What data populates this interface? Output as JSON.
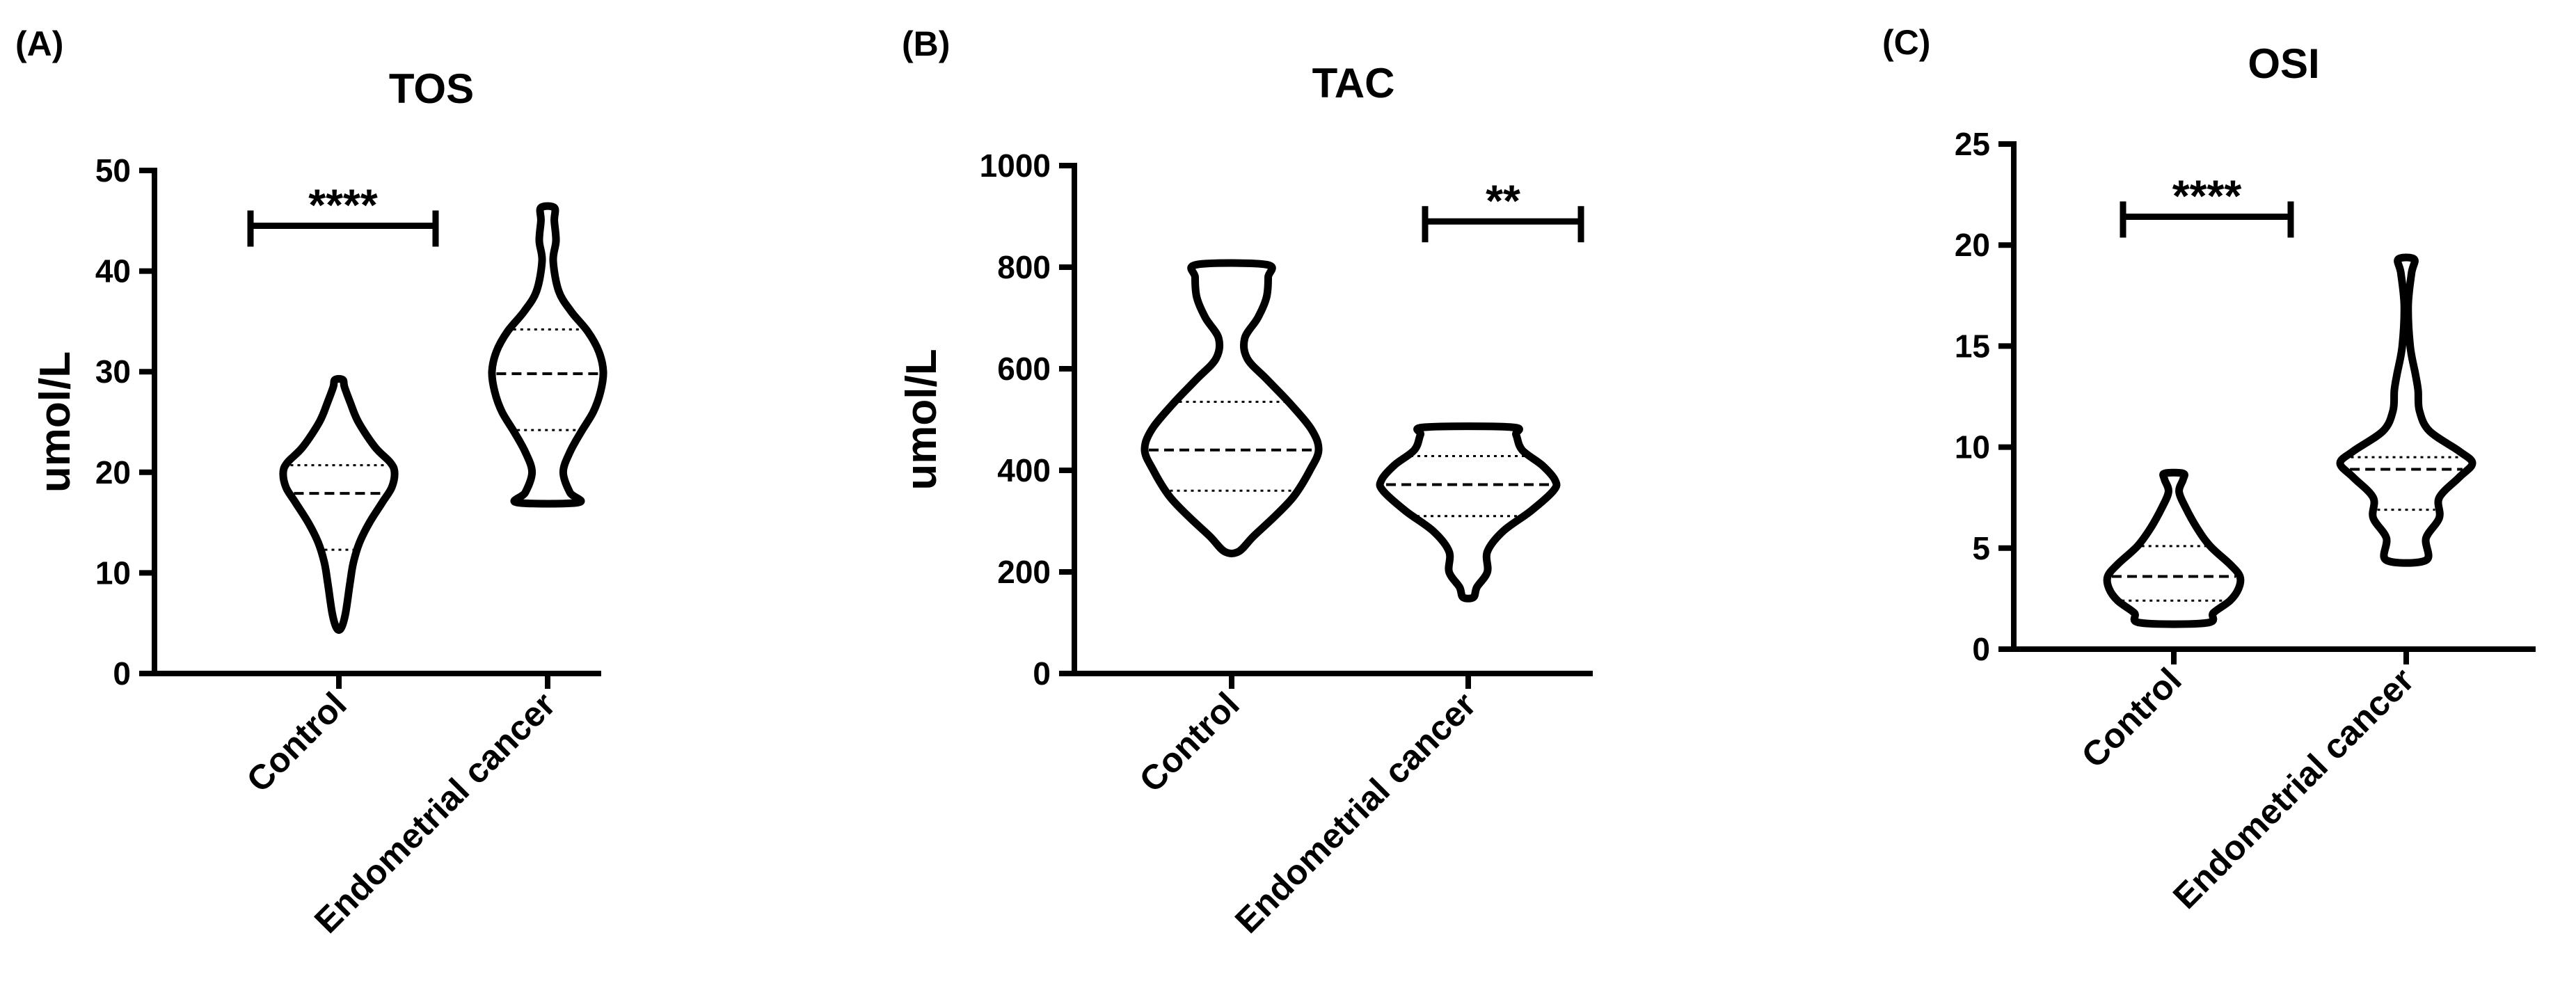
{
  "chart_data": [
    {
      "type": "violin",
      "panel_label": "(A)",
      "title": "TOS",
      "ylabel": "umol/L",
      "ylim": [
        0,
        50
      ],
      "yticks": [
        0,
        10,
        20,
        30,
        40,
        50
      ],
      "categories": [
        "Control",
        "Endometrial cancer"
      ],
      "groups": [
        {
          "name": "Control",
          "min": 4.5,
          "q1": 12.3,
          "median": 17.9,
          "q3": 20.7,
          "max": 29.2,
          "profile": [
            [
              4.5,
              0.04
            ],
            [
              6,
              0.12
            ],
            [
              9,
              0.2
            ],
            [
              11,
              0.26
            ],
            [
              13,
              0.37
            ],
            [
              15,
              0.55
            ],
            [
              17,
              0.78
            ],
            [
              18.5,
              0.95
            ],
            [
              20,
              1.0
            ],
            [
              21,
              0.92
            ],
            [
              22.5,
              0.65
            ],
            [
              25,
              0.35
            ],
            [
              27,
              0.2
            ],
            [
              28.5,
              0.1
            ],
            [
              29.2,
              0.07
            ]
          ]
        },
        {
          "name": "Endometrial cancer",
          "min": 17,
          "q1": 24.2,
          "median": 29.8,
          "q3": 34.2,
          "max": 46.3,
          "profile": [
            [
              17,
              0.55
            ],
            [
              18,
              0.4
            ],
            [
              20,
              0.28
            ],
            [
              22,
              0.4
            ],
            [
              24,
              0.6
            ],
            [
              26,
              0.82
            ],
            [
              28,
              0.95
            ],
            [
              30,
              1.0
            ],
            [
              32,
              0.92
            ],
            [
              34,
              0.72
            ],
            [
              36,
              0.42
            ],
            [
              38,
              0.2
            ],
            [
              41,
              0.1
            ],
            [
              43,
              0.15
            ],
            [
              45,
              0.12
            ],
            [
              46.3,
              0.12
            ]
          ]
        }
      ],
      "significance": {
        "text": "****",
        "between": [
          "Control",
          "Endometrial cancer"
        ],
        "y": 44.5
      }
    },
    {
      "type": "violin",
      "panel_label": "(B)",
      "title": "TAC",
      "ylabel": "umol/L",
      "ylim": [
        0,
        1000
      ],
      "yticks": [
        0,
        200,
        400,
        600,
        800,
        1000
      ],
      "categories": [
        "Control",
        "Endometrial cancer"
      ],
      "groups": [
        {
          "name": "Control",
          "min": 240,
          "q1": 360,
          "median": 440,
          "q3": 535,
          "max": 805,
          "profile": [
            [
              240,
              0.08
            ],
            [
              270,
              0.25
            ],
            [
              310,
              0.5
            ],
            [
              350,
              0.72
            ],
            [
              400,
              0.9
            ],
            [
              440,
              1.0
            ],
            [
              480,
              0.92
            ],
            [
              530,
              0.68
            ],
            [
              580,
              0.4
            ],
            [
              620,
              0.18
            ],
            [
              660,
              0.15
            ],
            [
              700,
              0.3
            ],
            [
              740,
              0.4
            ],
            [
              780,
              0.42
            ],
            [
              805,
              0.4
            ]
          ]
        },
        {
          "name": "Endometrial cancer",
          "min": 150,
          "q1": 310,
          "median": 372,
          "q3": 428,
          "max": 485,
          "profile": [
            [
              150,
              0.06
            ],
            [
              170,
              0.1
            ],
            [
              200,
              0.22
            ],
            [
              240,
              0.22
            ],
            [
              280,
              0.4
            ],
            [
              320,
              0.72
            ],
            [
              360,
              0.98
            ],
            [
              380,
              1.0
            ],
            [
              410,
              0.85
            ],
            [
              440,
              0.62
            ],
            [
              470,
              0.55
            ],
            [
              485,
              0.5
            ]
          ]
        }
      ],
      "significance": {
        "text": "**",
        "between": [
          "Endometrial cancer"
        ],
        "y": 890
      }
    },
    {
      "type": "violin",
      "panel_label": "(C)",
      "title": "OSI",
      "ylabel": "",
      "ylim": [
        0,
        25
      ],
      "yticks": [
        0,
        5,
        10,
        15,
        20,
        25
      ],
      "categories": [
        "Control",
        "Endometrial cancer"
      ],
      "groups": [
        {
          "name": "Control",
          "min": 1.3,
          "q1": 2.4,
          "median": 3.6,
          "q3": 5.1,
          "max": 8.7,
          "profile": [
            [
              1.3,
              0.5
            ],
            [
              1.8,
              0.6
            ],
            [
              2.4,
              0.85
            ],
            [
              3,
              0.98
            ],
            [
              3.6,
              1.0
            ],
            [
              4.2,
              0.85
            ],
            [
              5.1,
              0.55
            ],
            [
              6,
              0.35
            ],
            [
              7,
              0.18
            ],
            [
              7.8,
              0.08
            ],
            [
              8.4,
              0.14
            ],
            [
              8.7,
              0.14
            ]
          ]
        },
        {
          "name": "Endometrial cancer",
          "min": 4.4,
          "q1": 6.9,
          "median": 8.9,
          "q3": 9.5,
          "max": 19.3,
          "profile": [
            [
              4.4,
              0.3
            ],
            [
              5.5,
              0.3
            ],
            [
              6.5,
              0.5
            ],
            [
              7.5,
              0.5
            ],
            [
              8.5,
              0.8
            ],
            [
              9.2,
              1.0
            ],
            [
              9.8,
              0.8
            ],
            [
              10.8,
              0.35
            ],
            [
              11.8,
              0.2
            ],
            [
              12.8,
              0.18
            ],
            [
              13.6,
              0.14
            ],
            [
              15,
              0.06
            ],
            [
              17,
              0.03
            ],
            [
              18.6,
              0.08
            ],
            [
              19.3,
              0.12
            ]
          ]
        }
      ],
      "significance": {
        "text": "****",
        "between": [
          "Control",
          "Endometrial cancer"
        ],
        "y": 21.4
      }
    }
  ]
}
